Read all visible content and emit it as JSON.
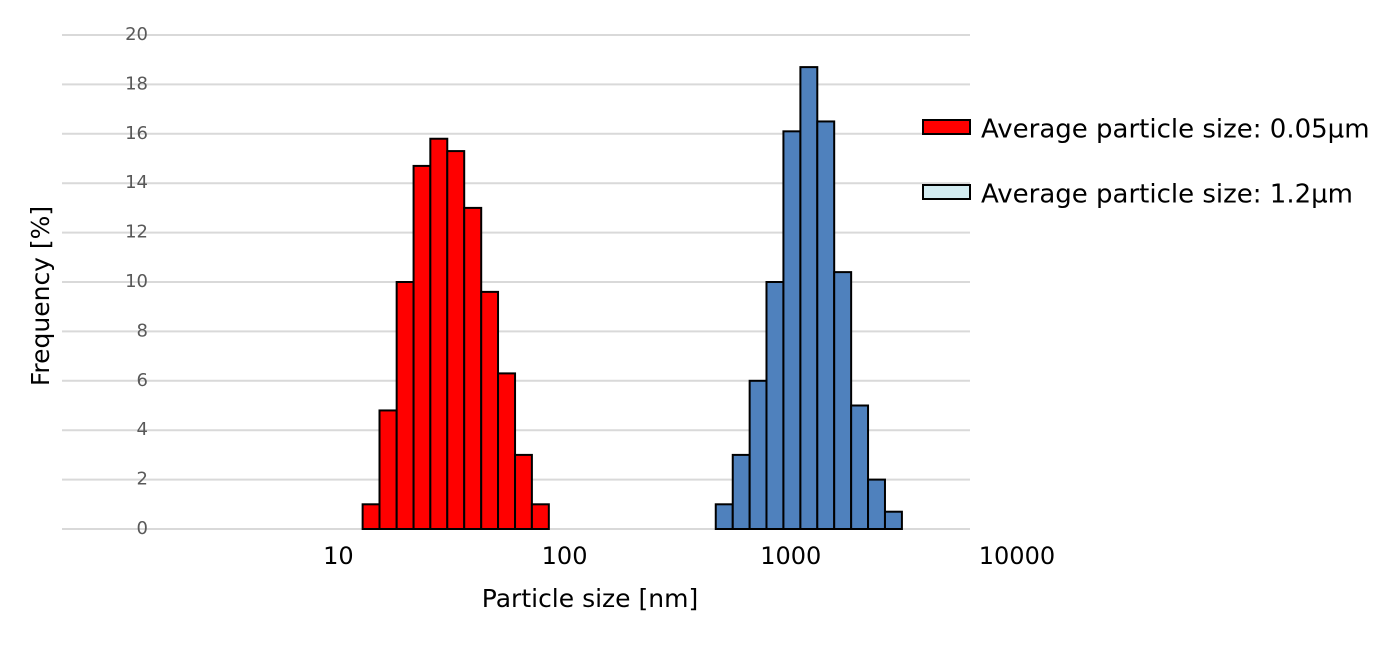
{
  "chart_data": {
    "type": "histogram",
    "x_label": "Particle size [nm]",
    "y_label": "Frequency [%]",
    "xscale": "log",
    "xlim": [
      0.6,
      6200
    ],
    "xticks": [
      10,
      100,
      1000,
      10000
    ],
    "ylim": [
      0,
      20
    ],
    "yticks": [
      0,
      2,
      4,
      6,
      8,
      10,
      12,
      14,
      16,
      18,
      20
    ],
    "grid": true,
    "legend": "right",
    "series": [
      {
        "name": "Average particle size: 0.05µm",
        "color": "#ff0000",
        "legend_color": "#ff0000",
        "bins": [
          12.8,
          15.2,
          18.1,
          21.5,
          25.5,
          30.3,
          36,
          42.8,
          50.8,
          60.4,
          71.7,
          85.2
        ],
        "values": [
          1,
          4.8,
          10,
          14.7,
          15.8,
          15.3,
          13,
          9.6,
          6.3,
          3,
          1
        ]
      },
      {
        "name": "Average particle size: 1.2µm",
        "color": "#4f81bd",
        "legend_color": "#d3ecf1",
        "bins": [
          466,
          554,
          658,
          781,
          928,
          1103,
          1310,
          1556,
          1849,
          2196,
          2609,
          3100
        ],
        "values": [
          1,
          3,
          6,
          10,
          16.1,
          18.7,
          16.5,
          10.4,
          5,
          2,
          0.7
        ]
      }
    ]
  }
}
